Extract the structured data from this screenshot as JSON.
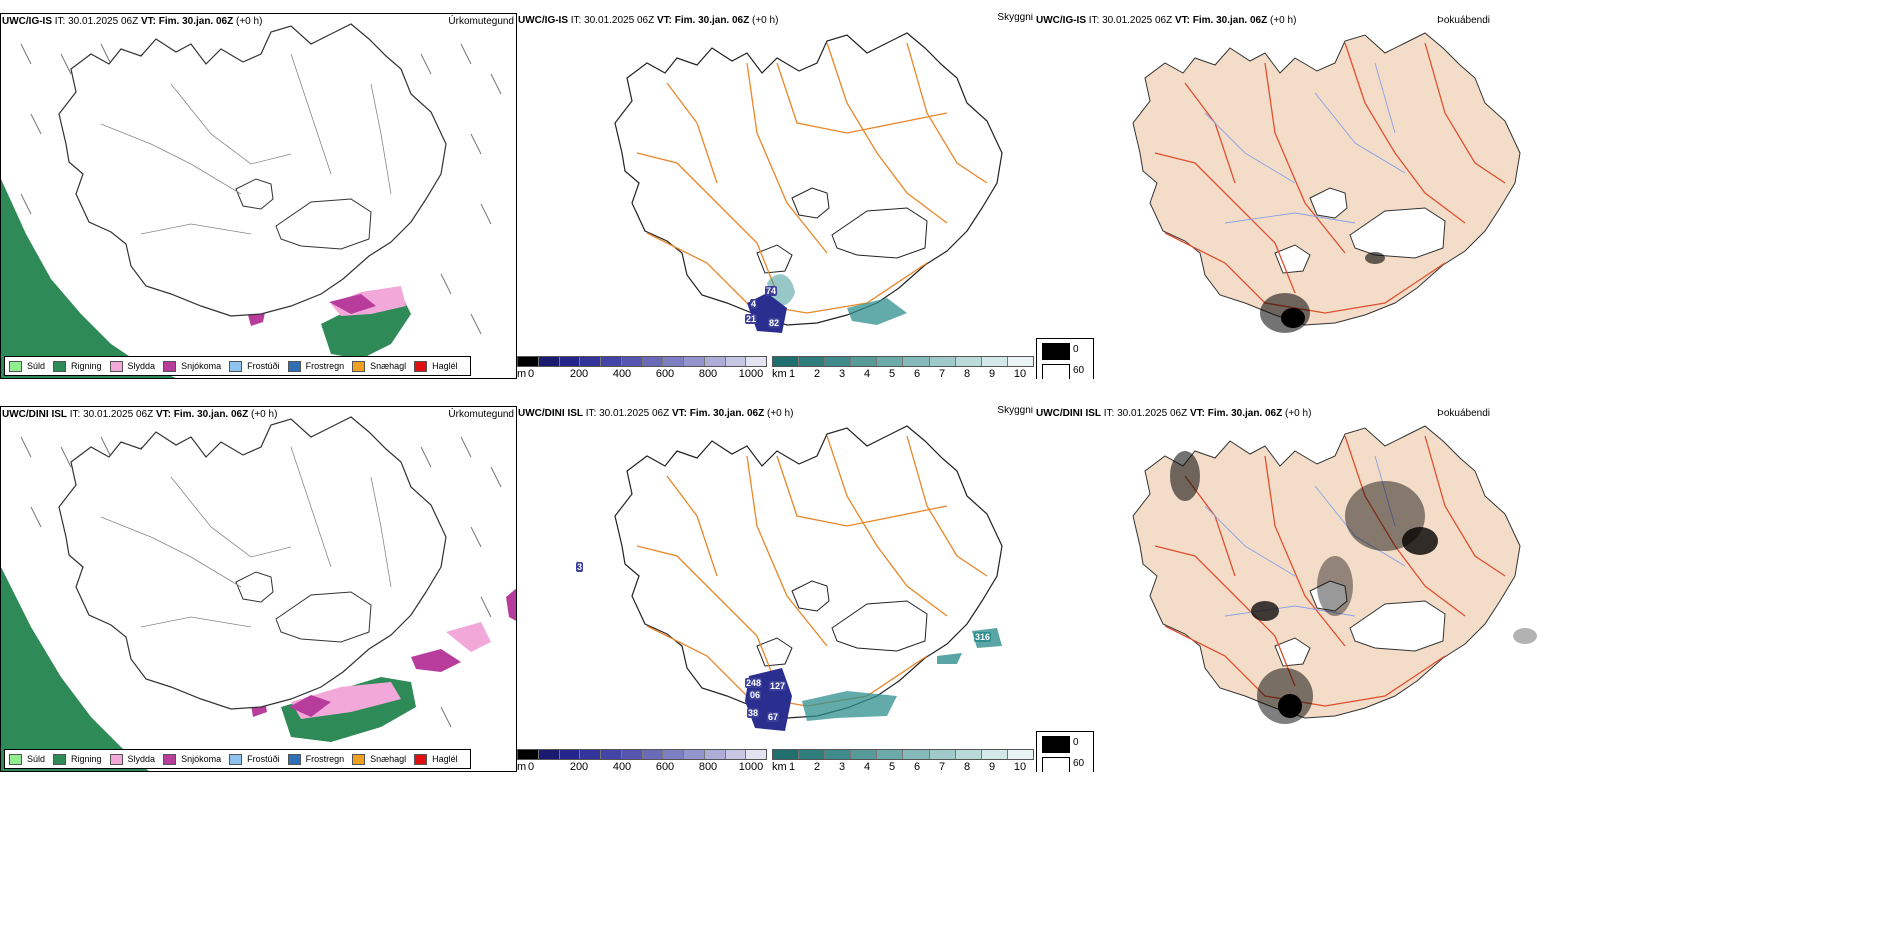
{
  "rows": [
    {
      "model": "UWC/IG-IS",
      "it": "IT: 30.01.2025 06Z",
      "vt_label": "VT:",
      "vt_value": "Fim. 30.jan. 06Z",
      "lead": "(+0 h)",
      "precip_title": "Úrkomutegund",
      "vis_title": "Skyggni",
      "cloud_title": "Þokuábendi",
      "vis_labels": [
        "74",
        "4",
        "21",
        "82"
      ]
    },
    {
      "model": "UWC/DINI ISL",
      "it": "IT: 30.01.2025 06Z",
      "vt_label": "VT:",
      "vt_value": "Fim. 30.jan. 06Z",
      "lead": "(+0 h)",
      "precip_title": "Úrkomutegund",
      "vis_title": "Skyggni",
      "cloud_title": "Þokuábendi",
      "vis_labels": [
        "248",
        "127",
        "06",
        "38",
        "67",
        "316",
        "3"
      ]
    }
  ],
  "precip_legend": [
    {
      "label": "Súld",
      "color": "#90ee90"
    },
    {
      "label": "Rigning",
      "color": "#2e8b57"
    },
    {
      "label": "Slydda",
      "color": "#f2a8d9"
    },
    {
      "label": "Snjókoma",
      "color": "#b83c9c"
    },
    {
      "label": "Frostúði",
      "color": "#8ec3ef"
    },
    {
      "label": "Frostregn",
      "color": "#2f6fb8"
    },
    {
      "label": "Snæhagl",
      "color": "#f0a020"
    },
    {
      "label": "Haglél",
      "color": "#e01010"
    }
  ],
  "height_bar": {
    "unit": "m",
    "ticks": [
      "0",
      "200",
      "400",
      "600",
      "800",
      "1000"
    ],
    "colors": [
      "#000000",
      "#1a1a6e",
      "#25258c",
      "#33339c",
      "#4444a6",
      "#5656b0",
      "#6a6ab9",
      "#7e7ec3",
      "#9595cd",
      "#adadd8",
      "#c7c7e4",
      "#e3e3f2"
    ]
  },
  "km_bar": {
    "unit": "km",
    "ticks": [
      "1",
      "2",
      "3",
      "4",
      "5",
      "6",
      "7",
      "8",
      "9",
      "10"
    ],
    "colors": [
      "#1f6f6f",
      "#2f7d7d",
      "#3f8b8b",
      "#569a9a",
      "#6daaaa",
      "#86baba",
      "#a0caca",
      "#bad9d9",
      "#d3e8e8",
      "#eaf4f4"
    ]
  },
  "cloud_legend": {
    "low": "0",
    "high": "60",
    "low_color": "#000000",
    "high_color": "#ffffff"
  },
  "colors": {
    "land_tan": "#f3ddc9",
    "road_orange": "#e8872a",
    "road_red": "#e0502f",
    "river_blue": "#8aa0e8",
    "vis_teal": "#2f8f8f",
    "vis_navy": "#2a2f8f"
  }
}
